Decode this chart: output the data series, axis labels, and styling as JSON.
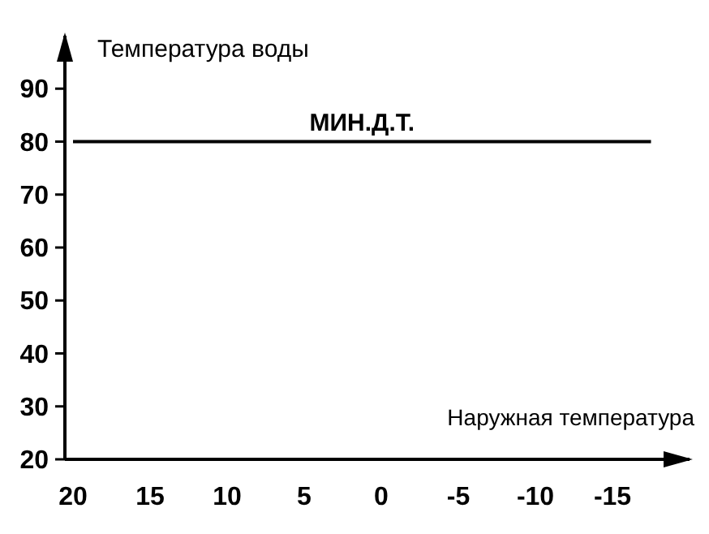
{
  "chart_data": {
    "type": "line",
    "ylabel": "Температура воды",
    "xlabel": "Наружная температура",
    "xlim": [
      20,
      -20
    ],
    "ylim": [
      20,
      100
    ],
    "xticks": [
      20,
      15,
      10,
      5,
      0,
      -5,
      -10,
      -15
    ],
    "yticks": [
      20,
      30,
      40,
      50,
      60,
      70,
      80,
      90
    ],
    "marker": "none",
    "line_style": "solid",
    "series": [
      {
        "name": "МИН.Д.Т.",
        "color": "#000000",
        "x": [
          20,
          -17.5
        ],
        "values": [
          80,
          80
        ]
      }
    ]
  }
}
